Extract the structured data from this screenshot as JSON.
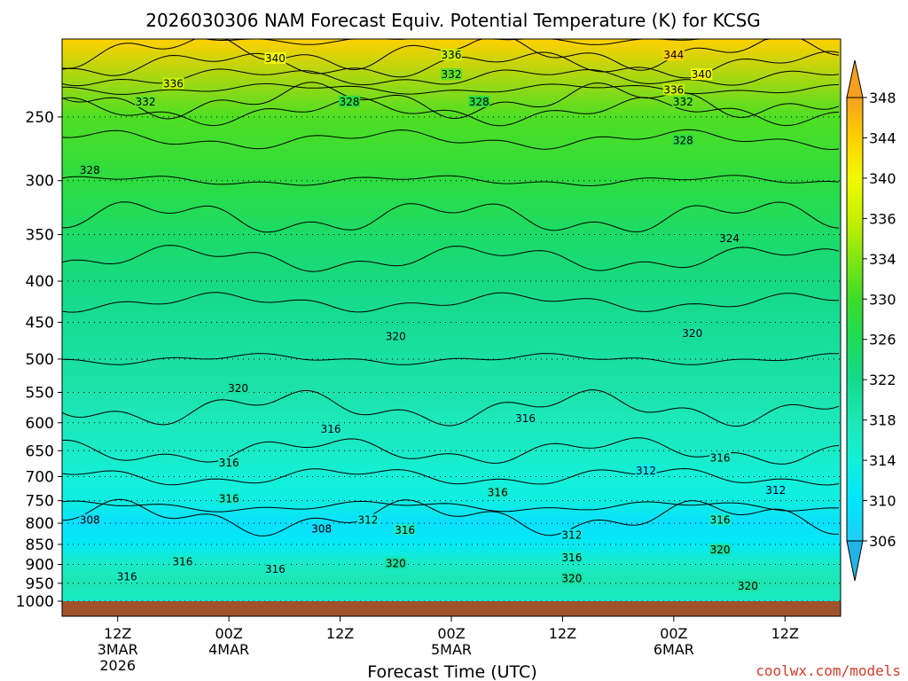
{
  "chart_data": {
    "type": "contour",
    "title": "2026030306 NAM Forecast Equiv. Potential Temperature (K) for KCSG",
    "xlabel": "Forecast Time (UTC)",
    "ylabel": "",
    "credit": "coolwx.com/models",
    "x_range_hours": [
      0,
      84
    ],
    "x_ticks": [
      {
        "hours": 6,
        "lines": [
          "12Z",
          "3MAR",
          "2026"
        ]
      },
      {
        "hours": 18,
        "lines": [
          "00Z",
          "4MAR"
        ]
      },
      {
        "hours": 30,
        "lines": [
          "12Z"
        ]
      },
      {
        "hours": 42,
        "lines": [
          "00Z",
          "5MAR"
        ]
      },
      {
        "hours": 54,
        "lines": [
          "12Z"
        ]
      },
      {
        "hours": 66,
        "lines": [
          "00Z",
          "6MAR"
        ]
      },
      {
        "hours": 78,
        "lines": [
          "12Z"
        ]
      }
    ],
    "y_axis": {
      "units": "hPa",
      "range": [
        1000,
        200
      ],
      "levels": [
        {
          "label": "250",
          "p": 250
        },
        {
          "label": "300",
          "p": 300
        },
        {
          "label": "350",
          "p": 350
        },
        {
          "label": "400",
          "p": 400
        },
        {
          "label": "450",
          "p": 450
        },
        {
          "label": "500",
          "p": 500
        },
        {
          "label": "550",
          "p": 550
        },
        {
          "label": "600",
          "p": 600
        },
        {
          "label": "650",
          "p": 650
        },
        {
          "label": "700",
          "p": 700
        },
        {
          "label": "750",
          "p": 750
        },
        {
          "label": "800",
          "p": 800
        },
        {
          "label": "850",
          "p": 850
        },
        {
          "label": "900",
          "p": 900
        },
        {
          "label": "950",
          "p": 950
        },
        {
          "label": "1000",
          "p": 1000
        }
      ]
    },
    "colorbar": {
      "labels": [
        "306",
        "310",
        "314",
        "318",
        "322",
        "326",
        "330",
        "334",
        "336",
        "340",
        "344",
        "348"
      ],
      "colors": [
        "#22cdf5",
        "#00e6ff",
        "#14f0d8",
        "#1ee6b4",
        "#14d98c",
        "#1edc5a",
        "#3cdc28",
        "#82e614",
        "#c8f000",
        "#f0fa00",
        "#ffd000",
        "#f5a020"
      ]
    },
    "contour_levels_K": [
      304,
      306,
      308,
      310,
      312,
      314,
      316,
      318,
      320,
      322,
      324,
      326,
      328,
      330,
      332,
      334,
      336,
      338,
      340,
      342,
      344,
      346
    ],
    "profile_p_hPa": [
      200,
      250,
      300,
      350,
      400,
      450,
      500,
      550,
      600,
      650,
      700,
      750,
      800,
      850,
      900,
      950,
      1000
    ],
    "profile_theta_e_K": [
      344,
      331,
      328,
      325,
      323,
      321,
      320,
      319,
      317,
      316,
      314,
      313,
      309,
      311,
      316,
      318,
      316
    ],
    "contour_labels": [
      {
        "text": "340",
        "hours": 23,
        "p": 212
      },
      {
        "text": "336",
        "hours": 12,
        "p": 228
      },
      {
        "text": "332",
        "hours": 9,
        "p": 240
      },
      {
        "text": "328",
        "hours": 31,
        "p": 240
      },
      {
        "text": "328",
        "hours": 3,
        "p": 292
      },
      {
        "text": "336",
        "hours": 42,
        "p": 210
      },
      {
        "text": "332",
        "hours": 42,
        "p": 222
      },
      {
        "text": "328",
        "hours": 45,
        "p": 240
      },
      {
        "text": "344",
        "hours": 66,
        "p": 210
      },
      {
        "text": "340",
        "hours": 69,
        "p": 222
      },
      {
        "text": "336",
        "hours": 66,
        "p": 232
      },
      {
        "text": "332",
        "hours": 67,
        "p": 240
      },
      {
        "text": "328",
        "hours": 67,
        "p": 268
      },
      {
        "text": "324",
        "hours": 72,
        "p": 355
      },
      {
        "text": "320",
        "hours": 36,
        "p": 470
      },
      {
        "text": "320",
        "hours": 68,
        "p": 466
      },
      {
        "text": "320",
        "hours": 19,
        "p": 545
      },
      {
        "text": "316",
        "hours": 29,
        "p": 613
      },
      {
        "text": "316",
        "hours": 50,
        "p": 594
      },
      {
        "text": "316",
        "hours": 18,
        "p": 675
      },
      {
        "text": "316",
        "hours": 71,
        "p": 665
      },
      {
        "text": "312",
        "hours": 63,
        "p": 690
      },
      {
        "text": "312",
        "hours": 77,
        "p": 730
      },
      {
        "text": "316",
        "hours": 18,
        "p": 748
      },
      {
        "text": "316",
        "hours": 47,
        "p": 735
      },
      {
        "text": "308",
        "hours": 3,
        "p": 795
      },
      {
        "text": "308",
        "hours": 28,
        "p": 815
      },
      {
        "text": "312",
        "hours": 33,
        "p": 795
      },
      {
        "text": "316",
        "hours": 37,
        "p": 818
      },
      {
        "text": "312",
        "hours": 55,
        "p": 830
      },
      {
        "text": "316",
        "hours": 71,
        "p": 795
      },
      {
        "text": "316",
        "hours": 13,
        "p": 895
      },
      {
        "text": "316",
        "hours": 7,
        "p": 935
      },
      {
        "text": "316",
        "hours": 23,
        "p": 915
      },
      {
        "text": "320",
        "hours": 36,
        "p": 900
      },
      {
        "text": "316",
        "hours": 55,
        "p": 885
      },
      {
        "text": "320",
        "hours": 71,
        "p": 865
      },
      {
        "text": "320",
        "hours": 55,
        "p": 940
      },
      {
        "text": "320",
        "hours": 74,
        "p": 960
      }
    ]
  }
}
